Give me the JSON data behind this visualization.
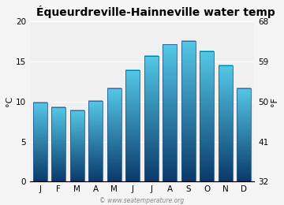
{
  "title": "Équeurdreville-Hainneville water temp",
  "months": [
    "J",
    "F",
    "M",
    "A",
    "M",
    "J",
    "J",
    "A",
    "S",
    "O",
    "N",
    "D"
  ],
  "values_c": [
    9.9,
    9.3,
    8.9,
    10.1,
    11.6,
    13.9,
    15.7,
    17.1,
    17.5,
    16.3,
    14.5,
    11.6
  ],
  "ylabel_left": "°C",
  "ylabel_right": "°F",
  "yticks_c": [
    0,
    5,
    10,
    15,
    20
  ],
  "yticks_f": [
    32,
    41,
    50,
    59,
    68
  ],
  "ylim": [
    0,
    20
  ],
  "bar_color_top": "#55C8E8",
  "bar_color_bottom": "#0A3A6B",
  "bar_border_color": "#2a5a8a",
  "background_color": "#f5f5f5",
  "plot_bg_color": "#f0f0f0",
  "grid_color": "#ffffff",
  "title_fontsize": 10,
  "axis_fontsize": 8,
  "tick_fontsize": 7.5,
  "watermark": "© www.seatemperature.org",
  "bar_width": 0.75
}
